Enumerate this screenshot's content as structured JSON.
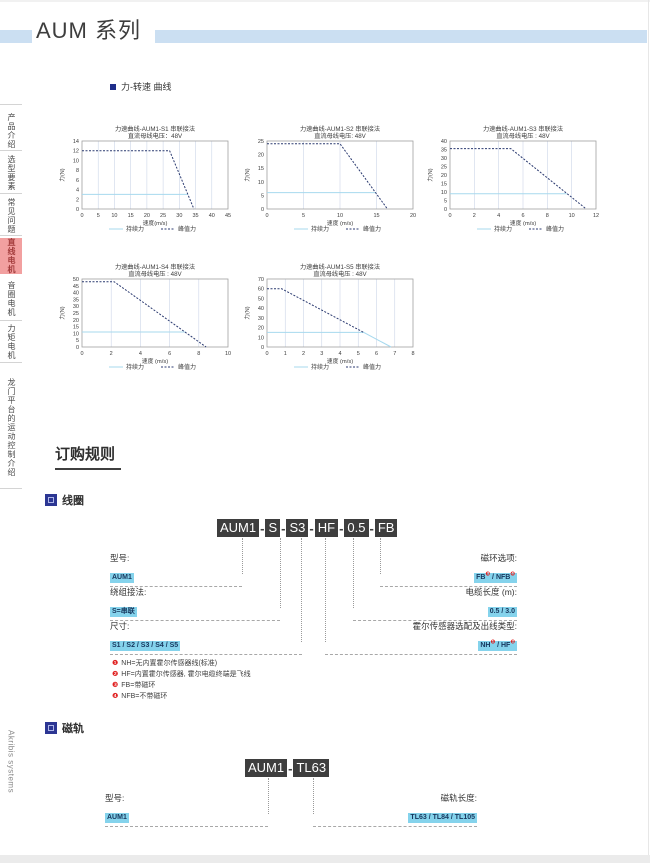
{
  "page": {
    "title": "AUM 系列",
    "section_force_speed": "力-转速 曲线",
    "ordering_heading": "订购规则",
    "coil_heading": "线圈",
    "track_heading": "磁轨"
  },
  "sidebar": {
    "items": [
      {
        "label": "产品介绍",
        "active": false
      },
      {
        "label": "选型要素",
        "active": false
      },
      {
        "label": "常见问题",
        "active": false
      },
      {
        "label": "直线电机",
        "active": true
      },
      {
        "label": "音圈电机",
        "active": false
      },
      {
        "label": "力矩电机",
        "active": false
      },
      {
        "label": "龙门平台的运动控制介绍",
        "active": false
      }
    ],
    "brand": "Akribis systems"
  },
  "colors": {
    "header_band": "#cbdff2",
    "active_tab_bg": "#f2a0a0",
    "active_tab_text": "#a33c3c",
    "continuous_force_line": "#a7d9ee",
    "peak_force_line": "#2b3a70",
    "value_chip_bg": "#85d3ec",
    "value_chip_text": "#16365c",
    "part_box_bg": "#3e3e3e",
    "footnote_marker": "#e02020"
  },
  "chart_data": [
    {
      "type": "line",
      "title": "力速曲线-AUM1-S1 串联接法",
      "subtitle": "直流母线电压：48V",
      "ylabel": "力(N)",
      "xlabel": "速度(m/s)",
      "xlim": [
        0,
        45
      ],
      "xstep": 5,
      "ylim": [
        0,
        14
      ],
      "ystep": 2,
      "grid": "vertical",
      "legend_position": "bottom",
      "series": [
        {
          "name": "持续力",
          "style": "solid",
          "color": "#a7d9ee",
          "points": [
            [
              0,
              3
            ],
            [
              32.6,
              3
            ]
          ]
        },
        {
          "name": "峰值力",
          "style": "dashed",
          "color": "#2b3a70",
          "points": [
            [
              0,
              12
            ],
            [
              27,
              12
            ],
            [
              34.5,
              0
            ]
          ]
        }
      ]
    },
    {
      "type": "line",
      "title": "力速曲线-AUM1-S2 串联接法",
      "subtitle": "直流母线电压: 48V",
      "ylabel": "力(N)",
      "xlabel": "速度 (m/s)",
      "xlim": [
        0,
        20
      ],
      "xstep": 5,
      "ylim": [
        0,
        25
      ],
      "ystep": 5,
      "grid": "vertical",
      "legend_position": "bottom",
      "series": [
        {
          "name": "持续力",
          "style": "solid",
          "color": "#a7d9ee",
          "points": [
            [
              0,
              6
            ],
            [
              14.9,
              6
            ]
          ]
        },
        {
          "name": "峰值力",
          "style": "dashed",
          "color": "#2b3a70",
          "points": [
            [
              0,
              24
            ],
            [
              10,
              24
            ],
            [
              16.5,
              0
            ]
          ]
        }
      ]
    },
    {
      "type": "line",
      "title": "力速曲线-AUM1-S3 串联接法",
      "subtitle": "直流母线电压 : 48V",
      "ylabel": "力(N)",
      "xlabel": "速度 (m/s)",
      "xlim": [
        0,
        12
      ],
      "xstep": 2,
      "ylim": [
        0,
        40
      ],
      "ystep": 5,
      "grid": "vertical",
      "legend_position": "bottom",
      "series": [
        {
          "name": "持续力",
          "style": "solid",
          "color": "#a7d9ee",
          "points": [
            [
              0,
              9
            ],
            [
              9.6,
              9
            ]
          ]
        },
        {
          "name": "峰值力",
          "style": "dashed",
          "color": "#2b3a70",
          "points": [
            [
              0,
              35.5
            ],
            [
              5,
              35.5
            ],
            [
              11.2,
              0
            ]
          ]
        }
      ]
    },
    {
      "type": "line",
      "title": "力速曲线-AUM1-S4 串联接法",
      "subtitle": "直流母线电压 : 48V",
      "ylabel": "力(N)",
      "xlabel": "速度 (m/s)",
      "xlim": [
        0,
        10
      ],
      "xstep": 2,
      "ylim": [
        0,
        50
      ],
      "ystep": 5,
      "grid": "vertical",
      "legend_position": "bottom",
      "series": [
        {
          "name": "持续力",
          "style": "solid",
          "color": "#a7d9ee",
          "points": [
            [
              0,
              11
            ],
            [
              7.1,
              11
            ]
          ]
        },
        {
          "name": "峰值力",
          "style": "dashed",
          "color": "#2b3a70",
          "points": [
            [
              0,
              48
            ],
            [
              2.2,
              48
            ],
            [
              8.5,
              0
            ]
          ]
        }
      ]
    },
    {
      "type": "line",
      "title": "力速曲线-AUM1-S5 串联接法",
      "subtitle": "直流母线电压 : 48V",
      "ylabel": "力(N)",
      "xlabel": "速度 (m/s)",
      "xlim": [
        0,
        8
      ],
      "xstep": 1,
      "ylim": [
        0,
        70
      ],
      "ystep": 10,
      "grid": "vertical",
      "legend_position": "bottom",
      "series": [
        {
          "name": "持续力",
          "style": "solid",
          "color": "#a7d9ee",
          "points": [
            [
              0,
              15
            ],
            [
              5.3,
              15
            ],
            [
              6.8,
              0
            ]
          ]
        },
        {
          "name": "峰值力",
          "style": "dashed",
          "color": "#2b3a70",
          "points": [
            [
              0,
              60
            ],
            [
              0.8,
              60
            ],
            [
              5.3,
              15
            ]
          ]
        }
      ]
    }
  ],
  "coil_order": {
    "part_number_segments": [
      "AUM1",
      "S",
      "S3",
      "HF",
      "0.5",
      "FB"
    ],
    "left_fields": [
      {
        "label": "型号:",
        "parts": [
          {
            "t": "AUM1"
          }
        ]
      },
      {
        "label": "绕组接法:",
        "parts": [
          {
            "t": "S=串联"
          }
        ]
      },
      {
        "label": "尺寸:",
        "parts": [
          {
            "t": "S1 / S2 / S3 / S4 / S5"
          }
        ]
      }
    ],
    "right_fields": [
      {
        "label": "磁环选项:",
        "parts": [
          {
            "t": "FB",
            "s": "❸"
          },
          {
            "t": " / "
          },
          {
            "t": "NFB",
            "s": "❹"
          }
        ]
      },
      {
        "label": "电缆长度 (m):",
        "parts": [
          {
            "t": "0.5 / 3.0"
          }
        ]
      },
      {
        "label": "霍尔传感器选配及出线类型:",
        "parts": [
          {
            "t": "NH",
            "s": "❶"
          },
          {
            "t": " / "
          },
          {
            "t": "HF",
            "s": "❷"
          }
        ]
      }
    ],
    "footnotes": [
      {
        "marker": "❶",
        "text": "NH=无内置霍尔传感器线(标准)"
      },
      {
        "marker": "❷",
        "text": "HF=内置霍尔传感器, 霍尔电缆终端是飞线"
      },
      {
        "marker": "❸",
        "text": "FB=带磁环"
      },
      {
        "marker": "❹",
        "text": "NFB=不带磁环"
      }
    ]
  },
  "track_order": {
    "part_number_segments": [
      "AUM1",
      "TL63"
    ],
    "left_field": {
      "label": "型号:",
      "parts": [
        {
          "t": "AUM1"
        }
      ]
    },
    "right_field": {
      "label": "磁轨长度:",
      "parts": [
        {
          "t": "TL63 / TL84 / TL105"
        }
      ]
    }
  }
}
